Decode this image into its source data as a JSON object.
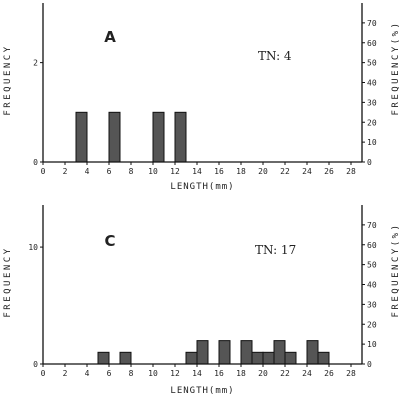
{
  "chart_data": [
    {
      "type": "bar",
      "panel_label": "A",
      "annotation": "TN: 4",
      "xlabel": "LENGTH(mm)",
      "ylabel_left": "FREQUENCY",
      "ylabel_right": "FREQUENCY(%)",
      "x_ticks": [
        0,
        2,
        4,
        6,
        8,
        10,
        12,
        14,
        16,
        18,
        20,
        22,
        24,
        26,
        28
      ],
      "xlim": [
        0,
        29
      ],
      "y_left_ticks": [
        0,
        2
      ],
      "ylim_left": [
        0,
        3.2
      ],
      "y_right_ticks": [
        0,
        10,
        20,
        30,
        40,
        50,
        60,
        70
      ],
      "ylim_right": [
        0,
        80
      ],
      "bin_width": 1,
      "x": [
        3,
        6,
        10,
        12
      ],
      "values": [
        1,
        1,
        1,
        1
      ],
      "bar_color": "#555555",
      "grid": false
    },
    {
      "type": "bar",
      "panel_label": "C",
      "annotation": "TN:  17",
      "xlabel": "LENGTH(mm)",
      "ylabel_left": "FREQUENCY",
      "ylabel_right": "FREQUENCY(%)",
      "x_ticks": [
        0,
        2,
        4,
        6,
        8,
        10,
        12,
        14,
        16,
        18,
        20,
        22,
        24,
        26,
        28
      ],
      "xlim": [
        0,
        29
      ],
      "y_left_ticks": [
        0,
        10
      ],
      "ylim_left": [
        0,
        13.6
      ],
      "y_right_ticks": [
        0,
        10,
        20,
        30,
        40,
        50,
        60,
        70
      ],
      "ylim_right": [
        0,
        80
      ],
      "bin_width": 1,
      "x": [
        5,
        7,
        13,
        14,
        16,
        18,
        19,
        20,
        21,
        22,
        24,
        25
      ],
      "values": [
        1,
        1,
        1,
        2,
        2,
        2,
        1,
        1,
        2,
        1,
        2,
        1
      ],
      "bar_color": "#555555",
      "grid": false
    }
  ]
}
